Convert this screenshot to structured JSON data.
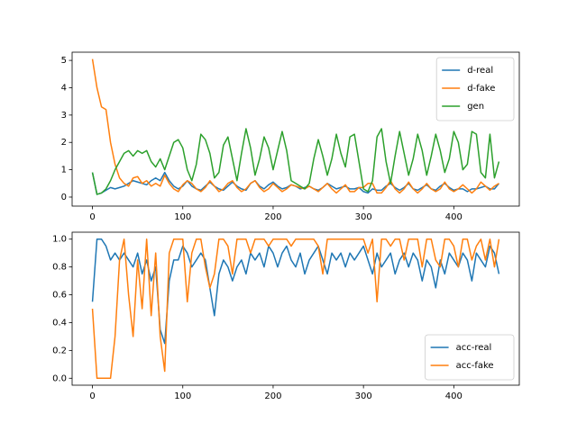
{
  "chart_data": [
    {
      "type": "line",
      "legend": "upper right",
      "x": [
        0,
        5,
        10,
        15,
        20,
        25,
        30,
        35,
        40,
        45,
        50,
        55,
        60,
        65,
        70,
        75,
        80,
        85,
        90,
        95,
        100,
        105,
        110,
        115,
        120,
        125,
        130,
        135,
        140,
        145,
        150,
        155,
        160,
        165,
        170,
        175,
        180,
        185,
        190,
        195,
        200,
        205,
        210,
        215,
        220,
        225,
        230,
        235,
        240,
        245,
        250,
        255,
        260,
        265,
        270,
        275,
        280,
        285,
        290,
        295,
        300,
        305,
        310,
        315,
        320,
        325,
        330,
        335,
        340,
        345,
        350,
        355,
        360,
        365,
        370,
        375,
        380,
        385,
        390,
        395,
        400,
        405,
        410,
        415,
        420,
        425,
        430,
        435,
        440,
        445,
        450
      ],
      "series": [
        {
          "name": "d-real",
          "color": "#1f77b4",
          "values": [
            0.9,
            0.1,
            0.15,
            0.25,
            0.35,
            0.3,
            0.35,
            0.4,
            0.5,
            0.6,
            0.55,
            0.5,
            0.45,
            0.6,
            0.7,
            0.6,
            0.9,
            0.6,
            0.4,
            0.3,
            0.4,
            0.6,
            0.4,
            0.3,
            0.25,
            0.4,
            0.55,
            0.4,
            0.3,
            0.25,
            0.4,
            0.55,
            0.4,
            0.3,
            0.25,
            0.5,
            0.6,
            0.4,
            0.3,
            0.45,
            0.55,
            0.4,
            0.3,
            0.35,
            0.45,
            0.4,
            0.3,
            0.35,
            0.4,
            0.3,
            0.25,
            0.35,
            0.5,
            0.4,
            0.3,
            0.35,
            0.4,
            0.3,
            0.3,
            0.35,
            0.2,
            0.15,
            0.3,
            0.25,
            0.25,
            0.4,
            0.5,
            0.35,
            0.25,
            0.35,
            0.5,
            0.3,
            0.25,
            0.35,
            0.45,
            0.3,
            0.25,
            0.4,
            0.5,
            0.35,
            0.25,
            0.3,
            0.3,
            0.2,
            0.3,
            0.3,
            0.35,
            0.4,
            0.3,
            0.3,
            0.5
          ]
        },
        {
          "name": "d-fake",
          "color": "#ff7f0e",
          "values": [
            5.05,
            4.0,
            3.3,
            3.2,
            2.0,
            1.2,
            0.7,
            0.5,
            0.4,
            0.7,
            0.75,
            0.5,
            0.6,
            0.4,
            0.5,
            0.4,
            0.8,
            0.5,
            0.3,
            0.2,
            0.45,
            0.6,
            0.5,
            0.3,
            0.2,
            0.35,
            0.6,
            0.4,
            0.2,
            0.3,
            0.5,
            0.6,
            0.35,
            0.2,
            0.3,
            0.5,
            0.6,
            0.35,
            0.2,
            0.3,
            0.5,
            0.35,
            0.2,
            0.3,
            0.45,
            0.4,
            0.35,
            0.3,
            0.4,
            0.3,
            0.2,
            0.35,
            0.5,
            0.3,
            0.15,
            0.3,
            0.45,
            0.2,
            0.2,
            0.35,
            0.35,
            0.5,
            0.5,
            0.15,
            0.15,
            0.35,
            0.6,
            0.3,
            0.15,
            0.3,
            0.55,
            0.3,
            0.15,
            0.3,
            0.5,
            0.3,
            0.2,
            0.3,
            0.55,
            0.3,
            0.2,
            0.3,
            0.45,
            0.3,
            0.15,
            0.3,
            0.55,
            0.4,
            0.25,
            0.4,
            0.5
          ]
        },
        {
          "name": "gen",
          "color": "#2ca02c",
          "values": [
            0.9,
            0.1,
            0.15,
            0.3,
            0.6,
            1.0,
            1.3,
            1.6,
            1.7,
            1.5,
            1.7,
            1.6,
            1.7,
            1.3,
            1.1,
            1.4,
            1.0,
            1.5,
            2.0,
            2.1,
            1.8,
            1.0,
            0.6,
            1.2,
            2.3,
            2.1,
            1.6,
            0.7,
            0.9,
            1.9,
            2.2,
            1.4,
            0.6,
            1.6,
            2.5,
            1.8,
            0.8,
            1.4,
            2.2,
            1.8,
            1.0,
            1.7,
            2.4,
            1.7,
            0.6,
            0.5,
            0.4,
            0.3,
            0.5,
            1.4,
            2.1,
            1.5,
            0.8,
            1.4,
            2.3,
            1.6,
            1.1,
            2.2,
            2.3,
            1.3,
            0.3,
            0.2,
            0.6,
            2.2,
            2.5,
            1.3,
            0.5,
            1.5,
            2.4,
            1.6,
            0.8,
            1.4,
            2.3,
            1.7,
            0.8,
            1.5,
            2.3,
            1.7,
            0.9,
            1.4,
            2.4,
            2.0,
            1.0,
            1.2,
            2.4,
            2.3,
            0.9,
            0.7,
            2.3,
            0.7,
            1.3
          ]
        }
      ],
      "xlim": [
        -22.5,
        472.5
      ],
      "xticks": [
        0,
        100,
        200,
        300,
        400
      ],
      "ylim": [
        -0.33,
        5.3
      ],
      "yticks": [
        0,
        1,
        2,
        3,
        4,
        5
      ]
    },
    {
      "type": "line",
      "legend": "lower right",
      "x": [
        0,
        5,
        10,
        15,
        20,
        25,
        30,
        35,
        40,
        45,
        50,
        55,
        60,
        65,
        70,
        75,
        80,
        85,
        90,
        95,
        100,
        105,
        110,
        115,
        120,
        125,
        130,
        135,
        140,
        145,
        150,
        155,
        160,
        165,
        170,
        175,
        180,
        185,
        190,
        195,
        200,
        205,
        210,
        215,
        220,
        225,
        230,
        235,
        240,
        245,
        250,
        255,
        260,
        265,
        270,
        275,
        280,
        285,
        290,
        295,
        300,
        305,
        310,
        315,
        320,
        325,
        330,
        335,
        340,
        345,
        350,
        355,
        360,
        365,
        370,
        375,
        380,
        385,
        390,
        395,
        400,
        405,
        410,
        415,
        420,
        425,
        430,
        435,
        440,
        445,
        450
      ],
      "series": [
        {
          "name": "acc-real",
          "color": "#1f77b4",
          "values": [
            0.55,
            1.0,
            1.0,
            0.95,
            0.85,
            0.9,
            0.85,
            0.9,
            0.85,
            0.8,
            0.9,
            0.75,
            0.85,
            0.7,
            0.8,
            0.35,
            0.25,
            0.7,
            0.85,
            0.85,
            0.95,
            0.9,
            0.8,
            0.85,
            0.9,
            0.85,
            0.65,
            0.45,
            0.75,
            0.85,
            0.8,
            0.7,
            0.8,
            0.85,
            0.75,
            0.9,
            0.85,
            0.9,
            0.8,
            0.95,
            0.9,
            0.8,
            0.9,
            0.95,
            0.85,
            0.8,
            0.9,
            0.75,
            0.85,
            0.9,
            0.95,
            0.85,
            0.75,
            0.9,
            0.85,
            0.9,
            0.8,
            0.9,
            0.85,
            0.9,
            0.95,
            0.85,
            0.75,
            0.9,
            0.8,
            0.85,
            0.9,
            0.75,
            0.85,
            0.9,
            0.8,
            0.9,
            0.85,
            0.7,
            0.85,
            0.8,
            0.65,
            0.85,
            0.75,
            0.9,
            0.85,
            0.8,
            0.9,
            0.85,
            0.7,
            0.9,
            0.85,
            0.8,
            0.95,
            0.9,
            0.75
          ]
        },
        {
          "name": "acc-fake",
          "color": "#ff7f0e",
          "values": [
            0.5,
            0.0,
            0.0,
            0.0,
            0.0,
            0.3,
            0.85,
            1.0,
            0.6,
            0.3,
            0.85,
            0.5,
            1.0,
            0.45,
            0.9,
            0.3,
            0.05,
            0.9,
            1.0,
            1.0,
            1.0,
            0.55,
            0.9,
            1.0,
            1.0,
            0.8,
            0.65,
            0.75,
            1.0,
            1.0,
            0.95,
            0.75,
            1.0,
            1.0,
            1.0,
            0.9,
            1.0,
            1.0,
            1.0,
            0.95,
            1.0,
            1.0,
            1.0,
            1.0,
            0.95,
            1.0,
            1.0,
            1.0,
            1.0,
            1.0,
            0.95,
            0.75,
            1.0,
            1.0,
            1.0,
            1.0,
            1.0,
            1.0,
            1.0,
            1.0,
            1.0,
            0.9,
            1.0,
            0.55,
            1.0,
            1.0,
            0.95,
            1.0,
            1.0,
            0.85,
            1.0,
            1.0,
            1.0,
            0.8,
            1.0,
            1.0,
            0.85,
            0.8,
            1.0,
            1.0,
            0.95,
            0.8,
            1.0,
            1.0,
            0.85,
            0.95,
            1.0,
            0.85,
            1.0,
            0.8,
            1.0
          ]
        }
      ],
      "xlim": [
        -22.5,
        472.5
      ],
      "xticks": [
        0,
        100,
        200,
        300,
        400
      ],
      "ylim": [
        -0.05,
        1.05
      ],
      "yticks": [
        {
          "value": 0,
          "label": "0.0"
        },
        0.2,
        0.4,
        0.6,
        0.8,
        {
          "value": 1,
          "label": "1.0"
        }
      ]
    }
  ]
}
